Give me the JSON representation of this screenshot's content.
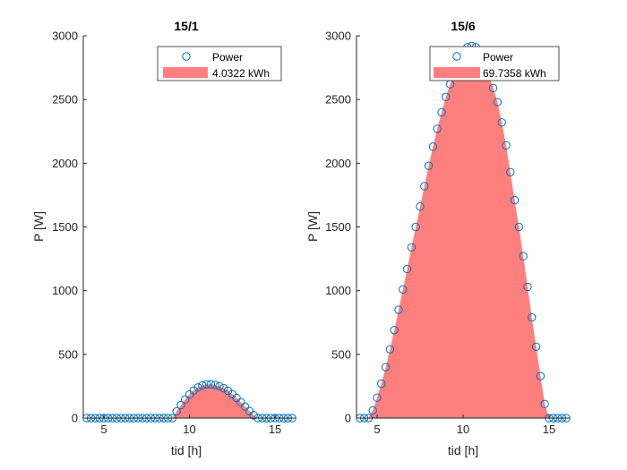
{
  "colors": {
    "marker": "#0072BD",
    "area": "#FF7F7F",
    "axis": "#262626",
    "background": "#ffffff"
  },
  "chart_data": [
    {
      "type": "area",
      "title": "15/1",
      "xlabel": "tid [h]",
      "ylabel": "P [W]",
      "xlim": [
        3.8,
        16.2
      ],
      "ylim": [
        0,
        3000
      ],
      "xticks": [
        5,
        10,
        15
      ],
      "yticks": [
        0,
        500,
        1000,
        1500,
        2000,
        2500,
        3000
      ],
      "grid": false,
      "legend_position": "top-right",
      "legend": [
        {
          "kind": "marker",
          "label": "Power"
        },
        {
          "kind": "patch",
          "label": "4.0322 kWh"
        }
      ],
      "series": [
        {
          "name": "Power",
          "x": [
            4.0,
            4.25,
            4.5,
            4.75,
            5.0,
            5.25,
            5.5,
            5.75,
            6.0,
            6.25,
            6.5,
            6.75,
            7.0,
            7.25,
            7.5,
            7.75,
            8.0,
            8.25,
            8.5,
            8.75,
            9.0,
            9.25,
            9.5,
            9.75,
            10.0,
            10.25,
            10.5,
            10.75,
            11.0,
            11.25,
            11.5,
            11.75,
            12.0,
            12.25,
            12.5,
            12.75,
            13.0,
            13.25,
            13.5,
            13.75,
            14.0,
            14.25,
            14.5,
            14.75,
            15.0,
            15.25,
            15.5,
            15.75,
            16.0
          ],
          "values": [
            0,
            0,
            0,
            0,
            0,
            0,
            0,
            0,
            0,
            0,
            0,
            0,
            0,
            0,
            0,
            0,
            0,
            0,
            0,
            0,
            0,
            52,
            102,
            146,
            185,
            216,
            240,
            256,
            264,
            265,
            260,
            250,
            235,
            214,
            188,
            158,
            125,
            90,
            55,
            22,
            0,
            0,
            0,
            0,
            0,
            0,
            0,
            0,
            0
          ]
        }
      ]
    },
    {
      "type": "area",
      "title": "15/6",
      "xlabel": "tid [h]",
      "ylabel": "P [W]",
      "xlim": [
        3.8,
        16.2
      ],
      "ylim": [
        0,
        3000
      ],
      "xticks": [
        5,
        10,
        15
      ],
      "yticks": [
        0,
        500,
        1000,
        1500,
        2000,
        2500,
        3000
      ],
      "grid": false,
      "legend_position": "top-right",
      "legend": [
        {
          "kind": "marker",
          "label": "Power"
        },
        {
          "kind": "patch",
          "label": "69.7358 kWh"
        }
      ],
      "series": [
        {
          "name": "Power",
          "x": [
            4.0,
            4.25,
            4.5,
            4.75,
            5.0,
            5.25,
            5.5,
            5.75,
            6.0,
            6.25,
            6.5,
            6.75,
            7.0,
            7.25,
            7.5,
            7.75,
            8.0,
            8.25,
            8.5,
            8.75,
            9.0,
            9.25,
            9.5,
            9.75,
            10.0,
            10.25,
            10.5,
            10.75,
            11.0,
            11.25,
            11.5,
            11.75,
            12.0,
            12.25,
            12.5,
            12.75,
            13.0,
            13.25,
            13.5,
            13.75,
            14.0,
            14.25,
            14.5,
            14.75,
            15.0,
            15.25,
            15.5,
            15.75,
            16.0
          ],
          "values": [
            0,
            0,
            0,
            60,
            160,
            270,
            400,
            540,
            690,
            850,
            1010,
            1170,
            1340,
            1500,
            1660,
            1820,
            1980,
            2130,
            2270,
            2400,
            2520,
            2620,
            2720,
            2800,
            2870,
            2910,
            2920,
            2910,
            2860,
            2780,
            2690,
            2590,
            2480,
            2320,
            2140,
            1930,
            1710,
            1500,
            1270,
            1030,
            790,
            560,
            330,
            110,
            0,
            0,
            0,
            0,
            0
          ]
        }
      ]
    }
  ]
}
